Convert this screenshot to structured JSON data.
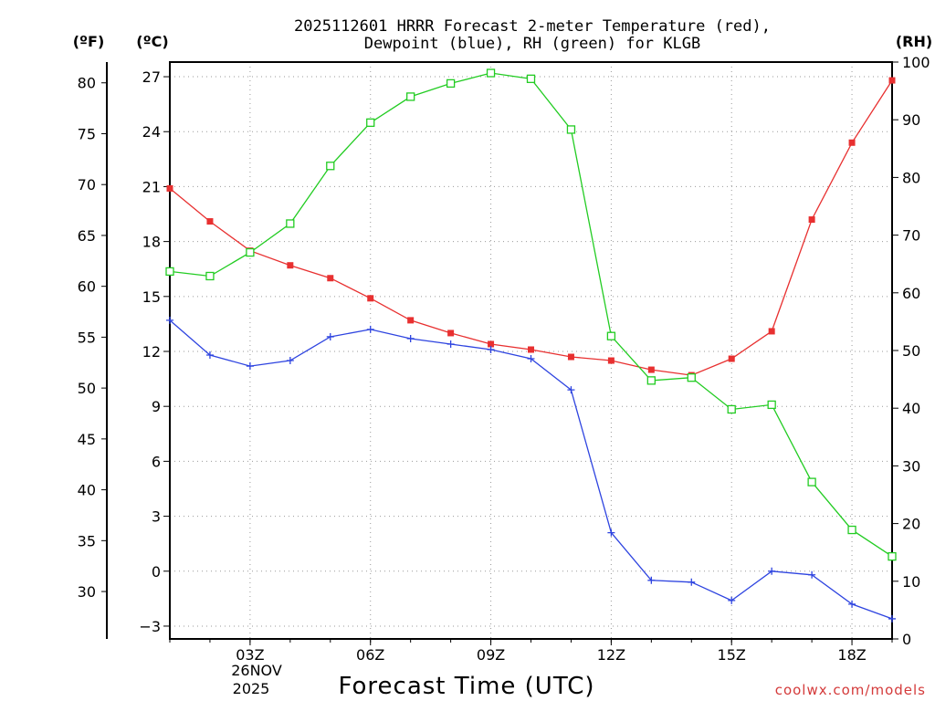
{
  "chart_data": {
    "type": "line",
    "title_line1": "2025112601 HRRR Forecast 2-meter Temperature (red),",
    "title_line2": "Dewpoint (blue), RH (green) for KLGB",
    "xlabel": "Forecast Time (UTC)",
    "credit": "coolwx.com/models",
    "unit_f": "(ºF)",
    "unit_c": "(ºC)",
    "unit_rh": "(RH)",
    "x_hours": [
      1,
      2,
      3,
      4,
      5,
      6,
      7,
      8,
      9,
      10,
      11,
      12,
      13,
      14,
      15,
      16,
      17,
      18,
      19
    ],
    "xlim": [
      1,
      19
    ],
    "x_ticks": [
      {
        "hour": 3,
        "label": "03Z"
      },
      {
        "hour": 6,
        "label": "06Z"
      },
      {
        "hour": 9,
        "label": "09Z"
      },
      {
        "hour": 12,
        "label": "12Z"
      },
      {
        "hour": 15,
        "label": "15Z"
      },
      {
        "hour": 18,
        "label": "18Z"
      }
    ],
    "date_label_line1": "26NOV",
    "date_label_line2": "2025",
    "ylim_c": [
      -3.7,
      27.8
    ],
    "y_ticks_c": [
      -3,
      0,
      3,
      6,
      9,
      12,
      15,
      18,
      21,
      24,
      27
    ],
    "y_ticks_f": [
      30,
      35,
      40,
      45,
      50,
      55,
      60,
      65,
      70,
      75,
      80
    ],
    "ylim_rh": [
      0,
      100
    ],
    "y_ticks_rh": [
      0,
      10,
      20,
      30,
      40,
      50,
      60,
      70,
      80,
      90,
      100
    ],
    "series": [
      {
        "name": "Temperature",
        "axis": "c",
        "color": "#e83030",
        "marker": "square",
        "values": [
          20.9,
          19.1,
          17.5,
          16.7,
          16.0,
          14.9,
          13.7,
          13.0,
          12.4,
          12.1,
          11.7,
          11.5,
          11.0,
          10.7,
          11.6,
          13.1,
          19.2,
          23.4,
          26.8
        ]
      },
      {
        "name": "Dewpoint",
        "axis": "c",
        "color": "#2e44e0",
        "marker": "plus",
        "values": [
          13.7,
          11.8,
          11.2,
          11.5,
          12.8,
          13.2,
          12.7,
          12.4,
          12.1,
          11.6,
          9.9,
          2.1,
          -0.5,
          -0.6,
          -1.6,
          0.0,
          -0.2,
          -1.8,
          -2.6
        ]
      },
      {
        "name": "RH",
        "axis": "rh",
        "color": "#22cc22",
        "marker": "open-square",
        "values": [
          63.7,
          62.9,
          67.0,
          72.0,
          82.0,
          89.5,
          94.0,
          96.3,
          98.1,
          97.1,
          88.3,
          52.5,
          44.8,
          45.3,
          39.8,
          40.6,
          27.2,
          18.9,
          14.3
        ]
      }
    ]
  }
}
